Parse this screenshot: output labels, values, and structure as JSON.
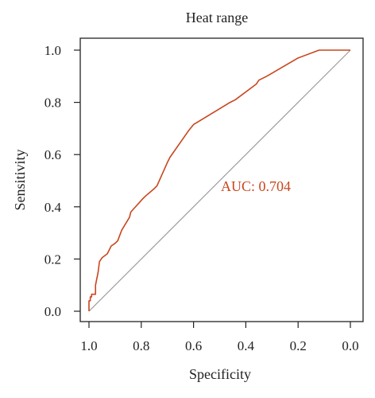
{
  "chart_data": {
    "type": "line",
    "title": "Heat range",
    "xlabel": "Specificity",
    "ylabel": "Sensitivity",
    "x_reversed": true,
    "xlim": [
      1.0,
      0.0
    ],
    "ylim": [
      0.0,
      1.0
    ],
    "x_ticks": [
      "1.0",
      "0.8",
      "0.6",
      "0.4",
      "0.2",
      "0.0"
    ],
    "x_tick_values": [
      1.0,
      0.8,
      0.6,
      0.4,
      0.2,
      0.0
    ],
    "y_ticks": [
      "0.0",
      "0.2",
      "0.4",
      "0.6",
      "0.8",
      "1.0"
    ],
    "y_tick_values": [
      0.0,
      0.2,
      0.4,
      0.6,
      0.8,
      1.0
    ],
    "grid": false,
    "annotation": "AUC: 0.704",
    "colors": {
      "curve": "#c8461e",
      "diagonal": "#9a9a9a",
      "axis": "#222222"
    },
    "series": [
      {
        "x": [
          1.0,
          1.0,
          0.995,
          0.995,
          0.99,
          0.99,
          0.975,
          0.975,
          0.965,
          0.96,
          0.95,
          0.93,
          0.915,
          0.9,
          0.89,
          0.875,
          0.845,
          0.84,
          0.795,
          0.785,
          0.75,
          0.74,
          0.7,
          0.69,
          0.62,
          0.6,
          0.46,
          0.44,
          0.36,
          0.35,
          0.32,
          0.2,
          0.12,
          0.06,
          0.0
        ],
        "y": [
          0.0,
          0.04,
          0.04,
          0.055,
          0.055,
          0.065,
          0.065,
          0.1,
          0.15,
          0.19,
          0.205,
          0.22,
          0.25,
          0.26,
          0.27,
          0.31,
          0.36,
          0.38,
          0.43,
          0.44,
          0.47,
          0.48,
          0.57,
          0.59,
          0.69,
          0.715,
          0.8,
          0.81,
          0.87,
          0.885,
          0.9,
          0.97,
          1.0,
          1.0,
          1.0
        ]
      }
    ]
  }
}
